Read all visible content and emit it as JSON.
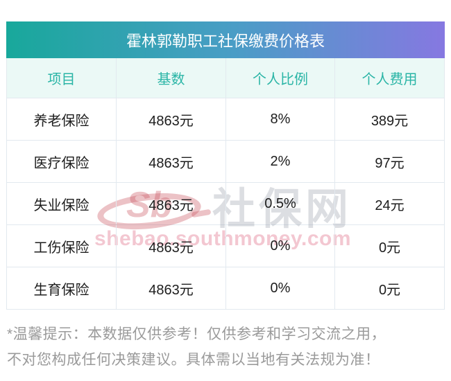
{
  "table": {
    "title": "霍林郭勒职工社保缴费价格表",
    "columns": [
      "项目",
      "基数",
      "个人比例",
      "个人费用"
    ],
    "rows": [
      {
        "item": "养老保险",
        "base": "4863元",
        "ratio": "8%",
        "fee": "389元"
      },
      {
        "item": "医疗保险",
        "base": "4863元",
        "ratio": "2%",
        "fee": "97元"
      },
      {
        "item": "失业保险",
        "base": "4863元",
        "ratio": "0.5%",
        "fee": "24元"
      },
      {
        "item": "工伤保险",
        "base": "4863元",
        "ratio": "0%",
        "fee": "0元"
      },
      {
        "item": "生育保险",
        "base": "4863元",
        "ratio": "0%",
        "fee": "0元"
      }
    ]
  },
  "chart_data": {
    "type": "table",
    "title": "霍林郭勒职工社保缴费价格表",
    "columns": [
      "项目",
      "基数",
      "个人比例",
      "个人费用"
    ],
    "rows": [
      [
        "养老保险",
        "4863元",
        "8%",
        "389元"
      ],
      [
        "医疗保险",
        "4863元",
        "2%",
        "97元"
      ],
      [
        "失业保险",
        "4863元",
        "0.5%",
        "24元"
      ],
      [
        "工伤保险",
        "4863元",
        "0%",
        "0元"
      ],
      [
        "生育保险",
        "4863元",
        "0%",
        "0元"
      ]
    ]
  },
  "watermark": {
    "logo_text": "Sb",
    "site_name": "社保网",
    "site_url": "shebao.southmoney.com"
  },
  "footer": {
    "line1": "*温馨提示：本数据仅供参考！仅供参考和学习交流之用，",
    "line2": "不对您构成任何决策建议。具体需以当地有关法规为准！"
  },
  "colors": {
    "gradient-left": "#18a89b",
    "gradient-mid": "#4a9dc6",
    "gradient-right": "#8678e1",
    "header-bg": "#ebf9f6",
    "header-text": "#2ab5a6",
    "row-text": "#1d1d1d",
    "divider": "#e2e9ef",
    "footer-text": "#9a9a9a",
    "wm-red": "#c8505c59",
    "wm-pink": "#e1738c66",
    "wm-gray": "#9aa0ad59"
  }
}
